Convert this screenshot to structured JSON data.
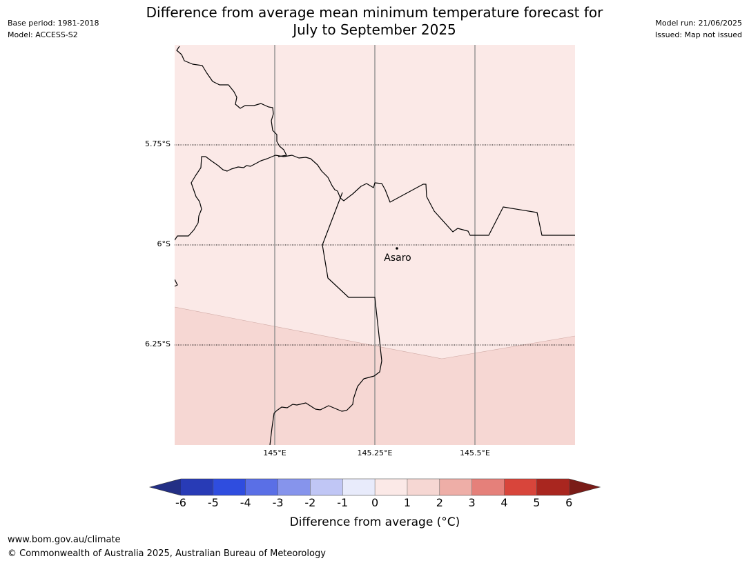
{
  "title": {
    "line1": "Difference from average mean minimum temperature forecast for",
    "line2": "July to September 2025"
  },
  "info_left": {
    "base_period": "Base period: 1981-2018",
    "model": "Model: ACCESS-S2"
  },
  "info_right": {
    "model_run": "Model run: 21/06/2025",
    "issued": "Issued: Map not issued"
  },
  "map": {
    "place_label": "Asaro",
    "lat_labels": [
      "5.75°S",
      "6°S",
      "6.25°S"
    ],
    "lon_labels": [
      "145°E",
      "145.25°E",
      "145.5°E"
    ],
    "fill_colors": {
      "anomaly_0_to_1": "#fbe9e7",
      "anomaly_1_to_2": "#f6d7d3"
    }
  },
  "colorbar": {
    "label": "Difference from average (°C)",
    "ticks": [
      "-6",
      "-5",
      "-4",
      "-3",
      "-2",
      "-1",
      "0",
      "1",
      "2",
      "3",
      "4",
      "5",
      "6"
    ],
    "colors": [
      "#232f85",
      "#283bb6",
      "#2f4ddf",
      "#5a6fe6",
      "#8694ec",
      "#c0c6f5",
      "#e8ebfb",
      "#fbe9e7",
      "#f6d7d3",
      "#eeaea7",
      "#e5807a",
      "#d8453b",
      "#a9261f",
      "#7a1c18"
    ]
  },
  "footer": {
    "url": "www.bom.gov.au/climate",
    "copyright": "© Commonwealth of Australia 2025, Australian Bureau of Meteorology"
  }
}
